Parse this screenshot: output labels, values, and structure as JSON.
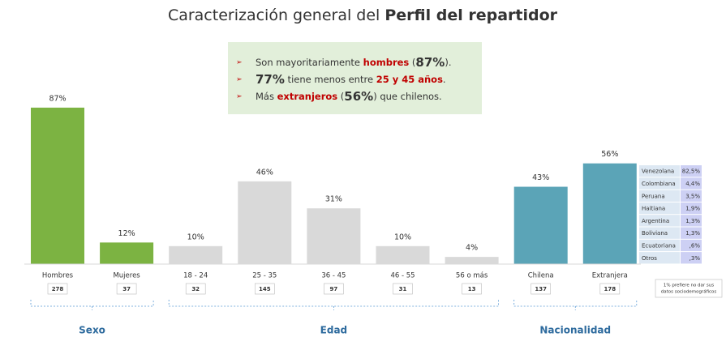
{
  "title": {
    "regular": "Caracterización general del ",
    "bold": "Perfil del repartidor"
  },
  "callout": {
    "bullet": "➢",
    "lines": [
      [
        {
          "text": "Son mayoritariamente "
        },
        {
          "text": "hombres",
          "style": "red"
        },
        {
          "text": " ("
        },
        {
          "text": "87%",
          "style": "big"
        },
        {
          "text": ")."
        }
      ],
      [
        {
          "text": "77%",
          "style": "big"
        },
        {
          "text": " tiene menos entre "
        },
        {
          "text": "25 y 45 años",
          "style": "red"
        },
        {
          "text": "."
        }
      ],
      [
        {
          "text": "Más "
        },
        {
          "text": "extranjeros",
          "style": "red"
        },
        {
          "text": " ("
        },
        {
          "text": "56%",
          "style": "big"
        },
        {
          "text": ") que chilenos."
        }
      ]
    ]
  },
  "chart_data": {
    "type": "bar",
    "groups": [
      {
        "name": "Sexo",
        "color": "#7cb342",
        "categories": [
          "Hombres",
          "Mujeres"
        ],
        "values": [
          87,
          12
        ],
        "value_labels": [
          "87%",
          "12%"
        ],
        "counts": [
          278,
          37
        ]
      },
      {
        "name": "Edad",
        "color": "#d9d9d9",
        "categories": [
          "18 - 24",
          "25 - 35",
          "36 - 45",
          "46 - 55",
          "56 o más"
        ],
        "values": [
          10,
          46,
          31,
          10,
          4
        ],
        "value_labels": [
          "10%",
          "46%",
          "31%",
          "10%",
          "4%"
        ],
        "counts": [
          32,
          145,
          97,
          31,
          13
        ]
      },
      {
        "name": "Nacionalidad",
        "color": "#5ba4b7",
        "categories": [
          "Chilena",
          "Extranjera"
        ],
        "values": [
          43,
          56
        ],
        "value_labels": [
          "43%",
          "56%"
        ],
        "counts": [
          137,
          178
        ]
      }
    ]
  },
  "nationality_table": {
    "rows": [
      {
        "name": "Venezolana",
        "value": "82,5%"
      },
      {
        "name": "Colombiana",
        "value": "4,4%"
      },
      {
        "name": "Peruana",
        "value": "3,5%"
      },
      {
        "name": "Haitiana",
        "value": "1,9%"
      },
      {
        "name": "Argentina",
        "value": "1,3%"
      },
      {
        "name": "Boliviana",
        "value": "1,3%"
      },
      {
        "name": "Ecuatoriana",
        "value": ",6%"
      },
      {
        "name": "Otros",
        "value": ",3%"
      }
    ],
    "note": [
      "1% prefiere no dar sus",
      "datos sociodemográficos"
    ]
  }
}
